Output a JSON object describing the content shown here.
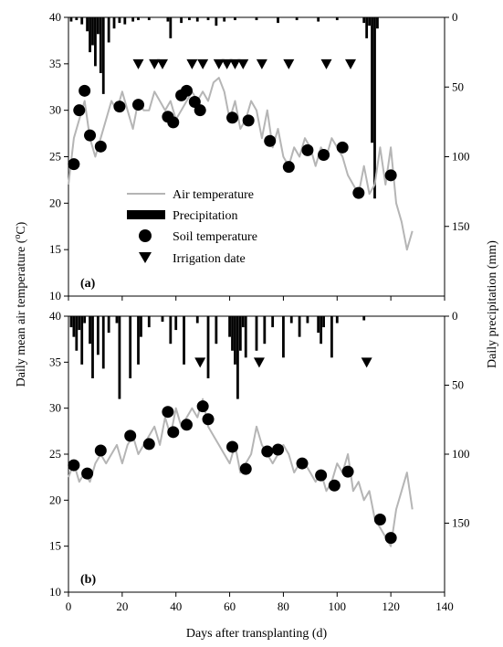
{
  "figure": {
    "xlabel": "Days after transplanting (d)",
    "ylabel_left": "Daily mean air temperature (",
    "ylabel_left_sup": "o",
    "ylabel_left_tail": "C)",
    "ylabel_right": "Daily precipitation (mm)"
  },
  "legend": {
    "air": "Air temperature",
    "precip": "Precipitation",
    "soil": "Soil temperature",
    "irrigation": "Irrigation date"
  },
  "colors": {
    "air": "#b5b5b5",
    "marks": "#000000"
  },
  "chart_data": [
    {
      "type": "line",
      "panel_label": "(a)",
      "xlim": [
        0,
        140
      ],
      "ylim": [
        10,
        40
      ],
      "y2lim_inverted": [
        0,
        200
      ],
      "xticks": [
        0,
        20,
        40,
        60,
        80,
        100,
        120,
        140
      ],
      "yticks": [
        10,
        15,
        20,
        25,
        30,
        35,
        40
      ],
      "y2ticks": [
        0,
        50,
        100,
        150
      ],
      "air_temperature": {
        "x": [
          0,
          2,
          4,
          6,
          8,
          10,
          12,
          14,
          16,
          18,
          20,
          22,
          24,
          26,
          28,
          30,
          32,
          34,
          36,
          38,
          40,
          42,
          44,
          46,
          48,
          50,
          52,
          54,
          56,
          58,
          60,
          62,
          64,
          66,
          68,
          70,
          72,
          74,
          76,
          78,
          80,
          82,
          84,
          86,
          88,
          90,
          92,
          94,
          96,
          98,
          100,
          102,
          104,
          106,
          108,
          110,
          112,
          114,
          116,
          118,
          120,
          122,
          124,
          126,
          128
        ],
        "y": [
          22,
          27,
          29,
          31,
          27,
          25,
          27,
          29,
          31,
          30,
          32,
          30,
          28,
          31,
          30,
          30,
          32,
          31,
          30,
          31,
          29,
          30,
          31,
          32,
          31,
          32,
          31,
          33,
          33.5,
          32,
          29,
          31,
          28,
          29,
          31,
          30,
          27,
          30,
          26,
          28,
          25,
          24,
          26,
          25,
          27,
          26,
          24,
          26,
          25,
          27,
          26,
          25,
          23,
          22,
          21,
          24,
          21,
          22,
          26,
          22,
          26,
          20,
          18,
          15,
          17
        ]
      },
      "precipitation": {
        "x": [
          1,
          3,
          5,
          7,
          8,
          9,
          10,
          11,
          12,
          13,
          15,
          17,
          19,
          21,
          24,
          26,
          30,
          37,
          38,
          42,
          45,
          48,
          52,
          55,
          58,
          62,
          70,
          78,
          85,
          93,
          100,
          110,
          111,
          112,
          113,
          114,
          115
        ],
        "y": [
          3,
          2,
          5,
          10,
          25,
          20,
          35,
          12,
          40,
          55,
          18,
          8,
          4,
          5,
          3,
          2,
          2,
          3,
          15,
          4,
          2,
          3,
          2,
          6,
          3,
          2,
          2,
          4,
          2,
          3,
          2,
          4,
          15,
          6,
          90,
          130,
          8
        ]
      },
      "soil_temperature": {
        "x": [
          2,
          4,
          6,
          8,
          12,
          19,
          26,
          37,
          39,
          42,
          44,
          47,
          49,
          61,
          67,
          75,
          82,
          89,
          95,
          102,
          108,
          120
        ],
        "y": [
          24.2,
          30,
          32.1,
          27.3,
          26.1,
          30.4,
          30.6,
          29.3,
          28.7,
          31.6,
          32.1,
          30.9,
          30,
          29.2,
          28.9,
          26.7,
          23.9,
          25.7,
          25.2,
          26,
          21.1,
          23
        ]
      },
      "irrigation_dates": {
        "x": [
          26,
          32,
          35,
          46,
          50,
          56,
          59,
          62,
          65,
          72,
          82,
          96,
          105
        ],
        "y": 35
      }
    },
    {
      "type": "line",
      "panel_label": "(b)",
      "xlim": [
        0,
        140
      ],
      "ylim": [
        10,
        40
      ],
      "y2lim_inverted": [
        0,
        200
      ],
      "xticks": [
        0,
        20,
        40,
        60,
        80,
        100,
        120,
        140
      ],
      "yticks": [
        10,
        15,
        20,
        25,
        30,
        35,
        40
      ],
      "y2ticks": [
        0,
        50,
        100,
        150
      ],
      "air_temperature": {
        "x": [
          0,
          2,
          4,
          6,
          8,
          10,
          12,
          14,
          16,
          18,
          20,
          22,
          24,
          26,
          28,
          30,
          32,
          34,
          36,
          38,
          40,
          42,
          44,
          46,
          48,
          50,
          52,
          54,
          56,
          58,
          60,
          62,
          64,
          66,
          68,
          70,
          72,
          74,
          76,
          78,
          80,
          82,
          84,
          86,
          88,
          90,
          92,
          94,
          96,
          98,
          100,
          102,
          104,
          106,
          108,
          110,
          112,
          114,
          116,
          118,
          120,
          122,
          124,
          126,
          128
        ],
        "y": [
          22.5,
          24,
          22,
          23,
          22,
          24,
          25,
          24,
          25,
          26,
          24,
          26,
          27,
          25,
          26,
          27,
          28,
          26,
          29,
          27,
          30,
          28,
          29,
          30,
          29,
          31,
          28,
          27,
          26,
          25,
          24,
          26,
          23,
          24,
          25,
          28,
          26,
          25,
          24,
          25,
          26,
          25,
          23,
          24,
          24,
          23,
          22,
          23,
          21,
          22,
          24,
          23,
          25,
          21,
          22,
          20,
          21,
          18,
          17,
          16,
          15,
          19,
          21,
          23,
          19
        ]
      },
      "precipitation": {
        "x": [
          1,
          2,
          3,
          4,
          5,
          6,
          8,
          9,
          11,
          13,
          15,
          18,
          19,
          23,
          26,
          27,
          30,
          35,
          38,
          40,
          43,
          48,
          52,
          55,
          60,
          61,
          62,
          63,
          64,
          65,
          66,
          70,
          73,
          76,
          80,
          83,
          86,
          89,
          93,
          94,
          95,
          98,
          100,
          110
        ],
        "y": [
          8,
          15,
          25,
          10,
          35,
          5,
          20,
          45,
          28,
          38,
          12,
          5,
          60,
          45,
          35,
          15,
          8,
          4,
          20,
          10,
          35,
          5,
          45,
          20,
          15,
          25,
          35,
          60,
          25,
          8,
          30,
          25,
          20,
          8,
          30,
          5,
          15,
          5,
          12,
          20,
          8,
          30,
          5,
          3
        ]
      },
      "soil_temperature": {
        "x": [
          2,
          7,
          12,
          23,
          30,
          37,
          39,
          44,
          50,
          52,
          61,
          66,
          74,
          78,
          87,
          94,
          99,
          104,
          116,
          120
        ],
        "y": [
          23.8,
          22.9,
          25.4,
          27,
          26.1,
          29.6,
          27.4,
          28.2,
          30.2,
          28.8,
          25.8,
          23.4,
          25.3,
          25.5,
          24,
          22.7,
          21.6,
          23.1,
          17.9,
          15.9
        ]
      },
      "irrigation_dates": {
        "x": [
          49,
          71,
          111
        ],
        "y": 35
      }
    }
  ]
}
